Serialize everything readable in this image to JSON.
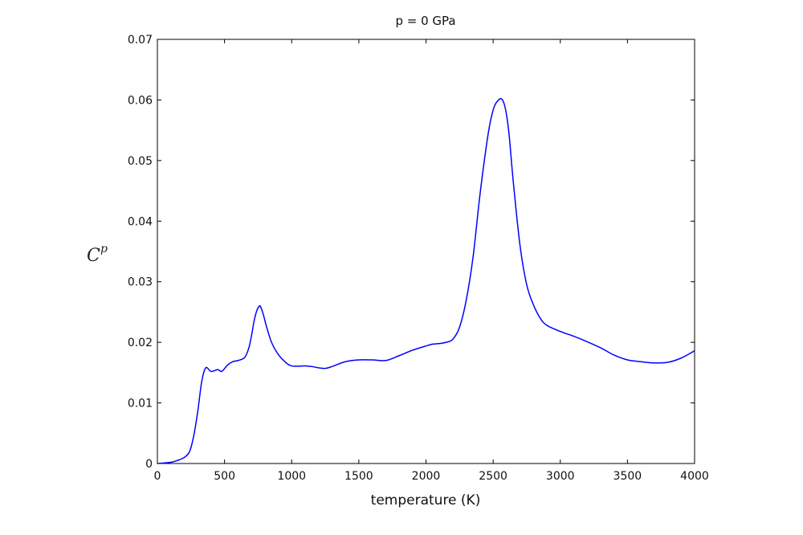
{
  "chart_data": {
    "type": "line",
    "title": "p = 0 GPa",
    "xlabel": "temperature (K)",
    "ylabel": "C",
    "ylabel_superscript": "p",
    "xlim": [
      0,
      4000
    ],
    "ylim": [
      0,
      0.07
    ],
    "xticks": [
      "0",
      "500",
      "1000",
      "1500",
      "2000",
      "2500",
      "3000",
      "3500",
      "4000"
    ],
    "yticks": [
      "0",
      "0.01",
      "0.02",
      "0.03",
      "0.04",
      "0.05",
      "0.06",
      "0.07"
    ],
    "grid": false,
    "line_color": "#0000ff",
    "series": [
      {
        "x": [
          0,
          100,
          150,
          200,
          240,
          270,
          300,
          330,
          360,
          400,
          450,
          480,
          520,
          560,
          600,
          650,
          680,
          700,
          720,
          740,
          760,
          770,
          790,
          810,
          850,
          900,
          950,
          1000,
          1100,
          1150,
          1200,
          1250,
          1300,
          1400,
          1500,
          1600,
          1700,
          1800,
          1900,
          2000,
          2050,
          2100,
          2150,
          2200,
          2250,
          2300,
          2350,
          2400,
          2450,
          2480,
          2510,
          2540,
          2560,
          2580,
          2600,
          2620,
          2650,
          2700,
          2750,
          2800,
          2850,
          2900,
          3000,
          3100,
          3200,
          3300,
          3400,
          3500,
          3600,
          3700,
          3800,
          3900,
          4000
        ],
        "y": [
          0,
          0.0002,
          0.0005,
          0.001,
          0.002,
          0.0045,
          0.0085,
          0.0135,
          0.0158,
          0.0152,
          0.0155,
          0.0152,
          0.0162,
          0.0168,
          0.017,
          0.0175,
          0.019,
          0.021,
          0.0235,
          0.0252,
          0.026,
          0.0258,
          0.0245,
          0.0228,
          0.02,
          0.018,
          0.0168,
          0.0161,
          0.0161,
          0.016,
          0.0158,
          0.0157,
          0.016,
          0.0168,
          0.0171,
          0.0171,
          0.017,
          0.0178,
          0.0187,
          0.0194,
          0.0197,
          0.0198,
          0.02,
          0.0205,
          0.0225,
          0.027,
          0.034,
          0.044,
          0.0525,
          0.0565,
          0.059,
          0.06,
          0.0602,
          0.0595,
          0.0575,
          0.054,
          0.0465,
          0.036,
          0.0295,
          0.0262,
          0.024,
          0.0228,
          0.0218,
          0.021,
          0.0201,
          0.0191,
          0.0179,
          0.0171,
          0.0168,
          0.0166,
          0.0167,
          0.0174,
          0.0186
        ]
      }
    ]
  }
}
